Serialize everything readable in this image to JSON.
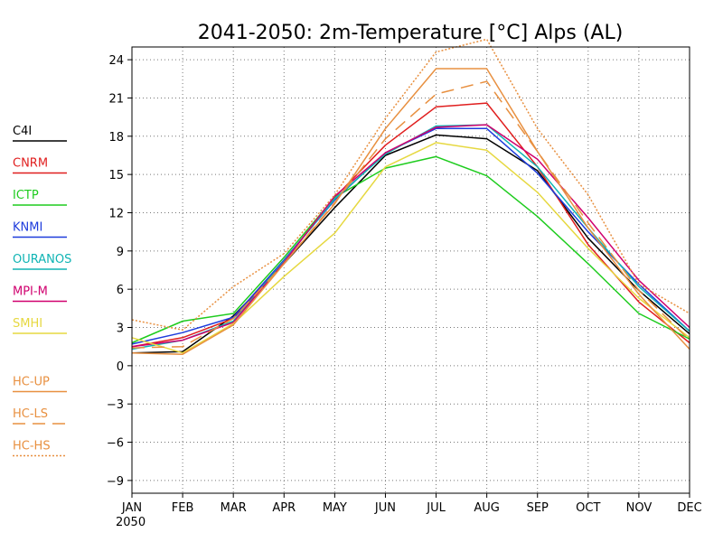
{
  "chart_data": {
    "type": "line",
    "title": "2041-2050: 2m-Temperature [°C] Alps (AL)",
    "xlabel": "",
    "ylabel": "",
    "year_label": "2050",
    "categories": [
      "JAN",
      "FEB",
      "MAR",
      "APR",
      "MAY",
      "JUN",
      "JUL",
      "AUG",
      "SEP",
      "OCT",
      "NOV",
      "DEC"
    ],
    "ylim": [
      -10,
      25
    ],
    "yticks": [
      24,
      21,
      18,
      15,
      12,
      9,
      6,
      3,
      0,
      -3,
      -6,
      -9
    ],
    "ytick_labels": [
      "24",
      "21",
      "18",
      "15",
      "12",
      "9",
      "6",
      "3",
      "0",
      "−3",
      "−6",
      "−9"
    ],
    "grid": "dotted",
    "legend_position": "left",
    "series": [
      {
        "name": "C4I",
        "color": "#000000",
        "dash": "solid",
        "values": [
          1.0,
          1.1,
          3.9,
          8.0,
          12.4,
          16.5,
          18.1,
          17.8,
          15.3,
          10.0,
          5.9,
          2.5
        ]
      },
      {
        "name": "CNRM",
        "color": "#e01e1e",
        "dash": "solid",
        "values": [
          1.5,
          2.2,
          3.7,
          8.2,
          13.2,
          17.3,
          20.3,
          20.6,
          15.6,
          9.5,
          5.0,
          1.8
        ]
      },
      {
        "name": "ICTP",
        "color": "#1ecc1e",
        "dash": "solid",
        "values": [
          1.8,
          3.5,
          4.1,
          8.5,
          13.2,
          15.5,
          16.4,
          14.9,
          11.7,
          8.0,
          4.1,
          2.1
        ]
      },
      {
        "name": "KNMI",
        "color": "#1e3cdc",
        "dash": "solid",
        "values": [
          1.7,
          2.6,
          3.8,
          8.3,
          13.0,
          16.7,
          18.6,
          18.6,
          15.1,
          10.5,
          6.4,
          2.7
        ]
      },
      {
        "name": "OURANOS",
        "color": "#10b4b4",
        "dash": "solid",
        "values": [
          1.3,
          2.0,
          3.5,
          8.2,
          13.1,
          16.6,
          18.8,
          18.9,
          15.6,
          10.8,
          6.2,
          2.7
        ]
      },
      {
        "name": "MPI-M",
        "color": "#d0006e",
        "dash": "solid",
        "values": [
          1.5,
          2.0,
          3.4,
          8.1,
          13.3,
          16.7,
          18.7,
          18.9,
          16.2,
          11.6,
          6.7,
          3.0
        ]
      },
      {
        "name": "SMHI",
        "color": "#e6d840",
        "dash": "solid",
        "values": [
          2.2,
          1.0,
          3.3,
          7.0,
          10.4,
          15.6,
          17.5,
          16.9,
          13.6,
          9.2,
          5.3,
          2.2
        ]
      },
      {
        "name": "HC-UP",
        "color": "#e89040",
        "dash": "solid",
        "values": [
          1.0,
          0.9,
          3.2,
          8.0,
          12.7,
          18.6,
          23.3,
          23.3,
          16.8,
          10.8,
          5.6,
          1.3
        ]
      },
      {
        "name": "HC-LS",
        "color": "#e89040",
        "dash": "dashed",
        "values": [
          1.4,
          1.5,
          3.7,
          8.0,
          12.8,
          17.8,
          21.3,
          22.3,
          16.8,
          11.2,
          5.9,
          2.0
        ]
      },
      {
        "name": "HC-HS",
        "color": "#e89040",
        "dash": "dotted",
        "values": [
          3.6,
          2.8,
          6.2,
          8.8,
          13.4,
          19.4,
          24.6,
          25.6,
          18.6,
          13.4,
          6.4,
          4.1
        ]
      }
    ]
  }
}
